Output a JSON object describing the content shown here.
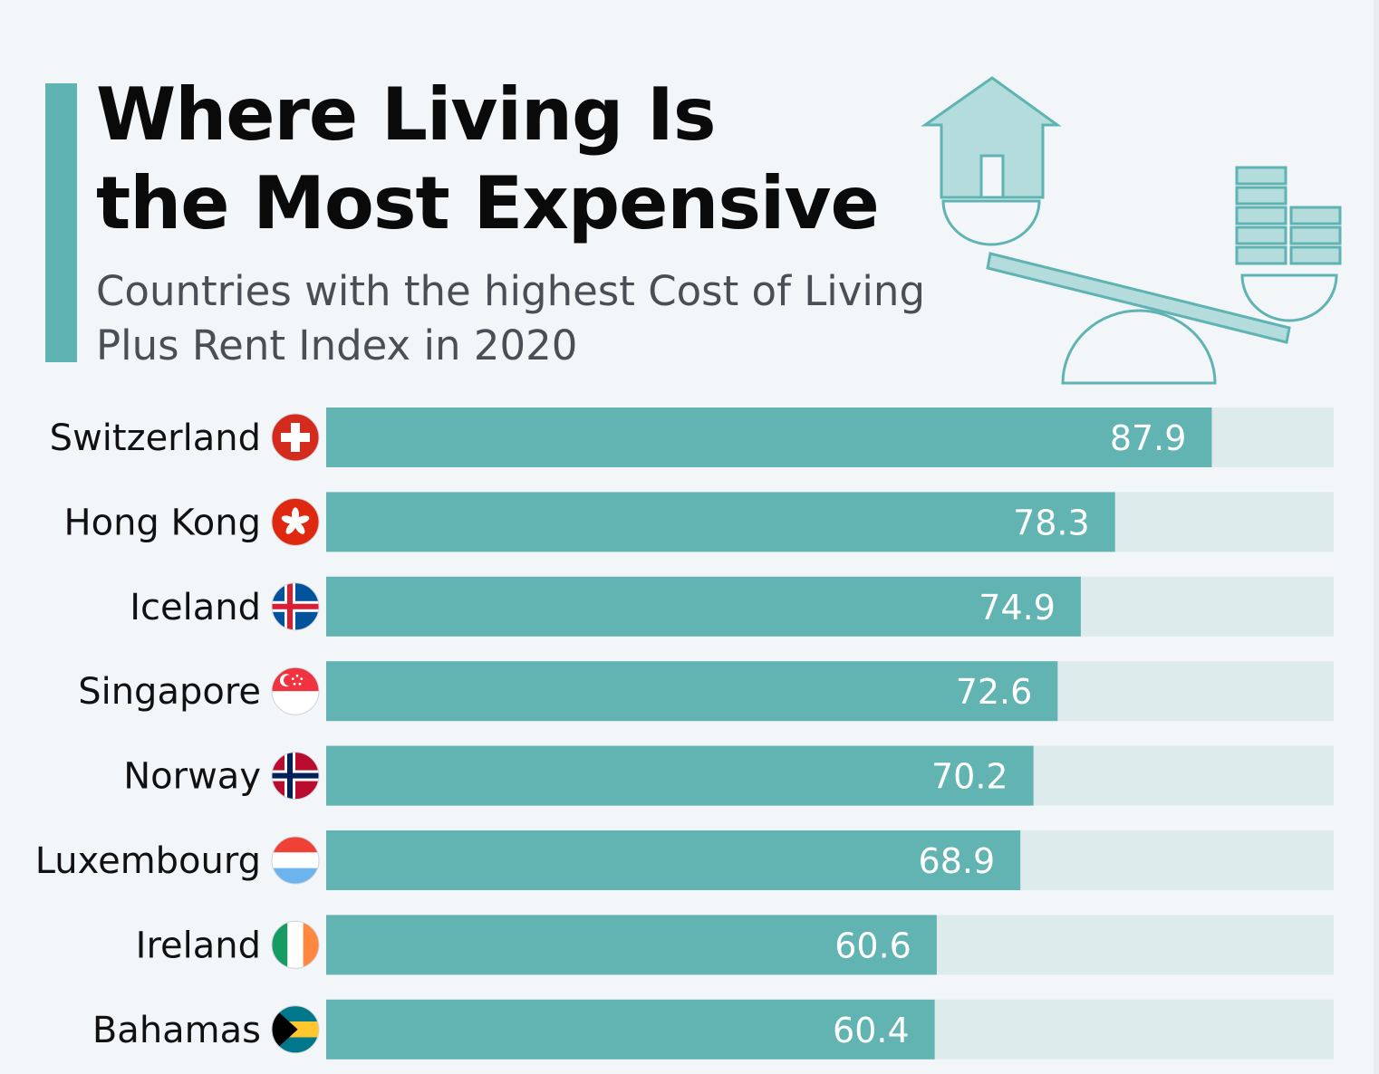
{
  "header": {
    "title_line1": "Where Living Is",
    "title_line2": "the Most Expensive",
    "subtitle_line1": "Countries with the highest Cost of Living",
    "subtitle_line2": "Plus Rent Index in 2020"
  },
  "colors": {
    "accent": "#5fb3b3",
    "bar": "#62b4b3",
    "bar_track": "#ddebed",
    "illustration_stroke": "#5fb3b3",
    "illustration_fill": "#b5dcdc"
  },
  "icons": [
    "house-icon",
    "coin-stack-icon",
    "balance-scale-icon"
  ],
  "chart_data": {
    "type": "bar",
    "orientation": "horizontal",
    "title": "Where Living Is the Most Expensive",
    "subtitle": "Countries with the highest Cost of Living Plus Rent Index in 2020",
    "categories": [
      "Switzerland",
      "Hong Kong",
      "Iceland",
      "Singapore",
      "Norway",
      "Luxembourg",
      "Ireland",
      "Bahamas"
    ],
    "values": [
      87.9,
      78.3,
      74.9,
      72.6,
      70.2,
      68.9,
      60.6,
      60.4
    ],
    "value_labels": [
      "87.9",
      "78.3",
      "74.9",
      "72.6",
      "70.2",
      "68.9",
      "60.6",
      "60.4"
    ],
    "flags": [
      "switzerland-flag-icon",
      "hong-kong-flag-icon",
      "iceland-flag-icon",
      "singapore-flag-icon",
      "norway-flag-icon",
      "luxembourg-flag-icon",
      "ireland-flag-icon",
      "bahamas-flag-icon"
    ],
    "xlim": [
      0,
      100
    ],
    "xlabel": "",
    "ylabel": "",
    "grid": false,
    "legend": "none"
  }
}
